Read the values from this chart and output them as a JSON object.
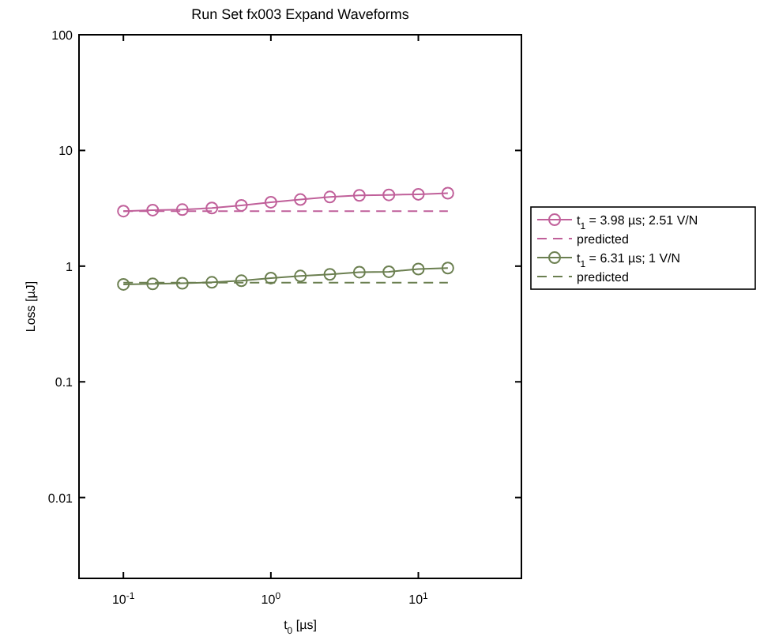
{
  "chart_data": {
    "type": "line",
    "title": "Run Set fx003 Expand Waveforms",
    "xlabel": "t$_{0}$ [µs]",
    "ylabel": "Loss [µJ]",
    "log": "xy",
    "grid": false,
    "legend": "right",
    "xlim": [
      0.05,
      50
    ],
    "ylim": [
      0.002,
      100
    ],
    "xticks": [
      {
        "value": 0.1,
        "label": "10$^{-1}$"
      },
      {
        "value": 1,
        "label": "10$^{0}$"
      },
      {
        "value": 10,
        "label": "10$^{1}$"
      }
    ],
    "yticks": [
      0.01,
      0.1,
      1,
      10,
      100
    ],
    "x": [
      0.1,
      0.158,
      0.251,
      0.398,
      0.631,
      1,
      1.585,
      2.512,
      3.981,
      6.31,
      10,
      15.85
    ],
    "series": [
      {
        "name": "t$_{1}$ = 3.98 µs;  2.51 V/N",
        "color": "#c0609a",
        "marker": "circle",
        "line_style": "solid",
        "values": [
          2.99,
          3.05,
          3.08,
          3.18,
          3.35,
          3.57,
          3.76,
          3.96,
          4.09,
          4.13,
          4.18,
          4.27
        ]
      },
      {
        "name": "predicted",
        "color": "#c0609a",
        "marker": "none",
        "line_style": "dashed",
        "values": [
          2.99,
          2.99,
          2.99,
          2.99,
          2.99,
          2.99,
          2.99,
          2.99,
          2.99,
          2.99,
          2.99,
          2.99
        ]
      },
      {
        "name": "t$_{1}$ = 6.31 µs;  1 V/N",
        "color": "#6b7f50",
        "marker": "circle",
        "line_style": "solid",
        "values": [
          0.695,
          0.703,
          0.711,
          0.724,
          0.748,
          0.789,
          0.822,
          0.849,
          0.887,
          0.895,
          0.944,
          0.963
        ]
      },
      {
        "name": "predicted",
        "color": "#6b7f50",
        "marker": "none",
        "line_style": "dashed",
        "values": [
          0.72,
          0.72,
          0.72,
          0.72,
          0.72,
          0.72,
          0.72,
          0.72,
          0.72,
          0.72,
          0.72,
          0.72
        ]
      }
    ]
  }
}
